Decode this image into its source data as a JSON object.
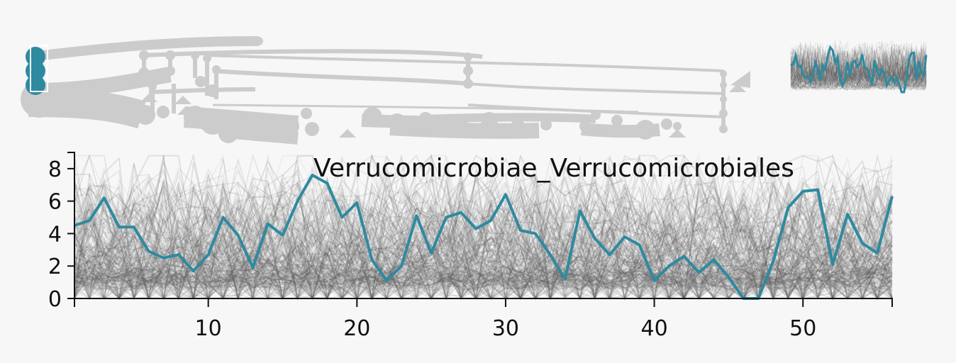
{
  "colors": {
    "background": "#f7f7f7",
    "highlight": "#2e8aa0",
    "background_series": "#5a5a5a",
    "tree": "#cccccc",
    "axis": "#111111"
  },
  "tree": {
    "icon": "hierarchical-tree-icon",
    "selected_nodes": 3
  },
  "chart_data": {
    "type": "line",
    "title": "Verrucomicrobiae_Verrucomicrobiales",
    "xlabel": "",
    "ylabel": "",
    "xlim": [
      1,
      56
    ],
    "ylim": [
      0,
      9
    ],
    "x_ticks": [
      10,
      20,
      30,
      40,
      50
    ],
    "y_ticks": [
      0,
      2,
      4,
      6,
      8
    ],
    "grid": false,
    "legend": "none",
    "series": [
      {
        "highlighted": true,
        "x": [
          1,
          2,
          3,
          4,
          5,
          6,
          7,
          8,
          9,
          10,
          11,
          12,
          13,
          14,
          15,
          16,
          17,
          18,
          19,
          20,
          21,
          22,
          23,
          24,
          25,
          26,
          27,
          28,
          29,
          30,
          31,
          32,
          33,
          34,
          35,
          36,
          37,
          38,
          39,
          40,
          41,
          42,
          43,
          44,
          45,
          46,
          47,
          48,
          49,
          50,
          51,
          52,
          53,
          54,
          55,
          56
        ],
        "values": [
          4.5,
          4.8,
          6.2,
          4.4,
          4.4,
          2.9,
          2.5,
          2.7,
          1.7,
          2.7,
          5.0,
          3.9,
          1.9,
          4.6,
          3.9,
          6.0,
          7.6,
          7.1,
          5.0,
          5.9,
          2.4,
          1.1,
          2.0,
          5.1,
          2.8,
          5.0,
          5.3,
          4.3,
          4.8,
          6.4,
          4.2,
          4.0,
          2.7,
          1.2,
          5.4,
          3.7,
          2.7,
          3.8,
          3.3,
          1.1,
          2.0,
          2.6,
          1.6,
          2.4,
          1.3,
          0.0,
          0.0,
          2.3,
          5.6,
          6.6,
          6.7,
          2.1,
          5.2,
          3.4,
          2.8,
          6.3
        ]
      }
    ],
    "background_series_count": 220
  },
  "minimap": {
    "type": "line",
    "ylim": [
      0,
      9
    ],
    "background_series_count": 120
  }
}
